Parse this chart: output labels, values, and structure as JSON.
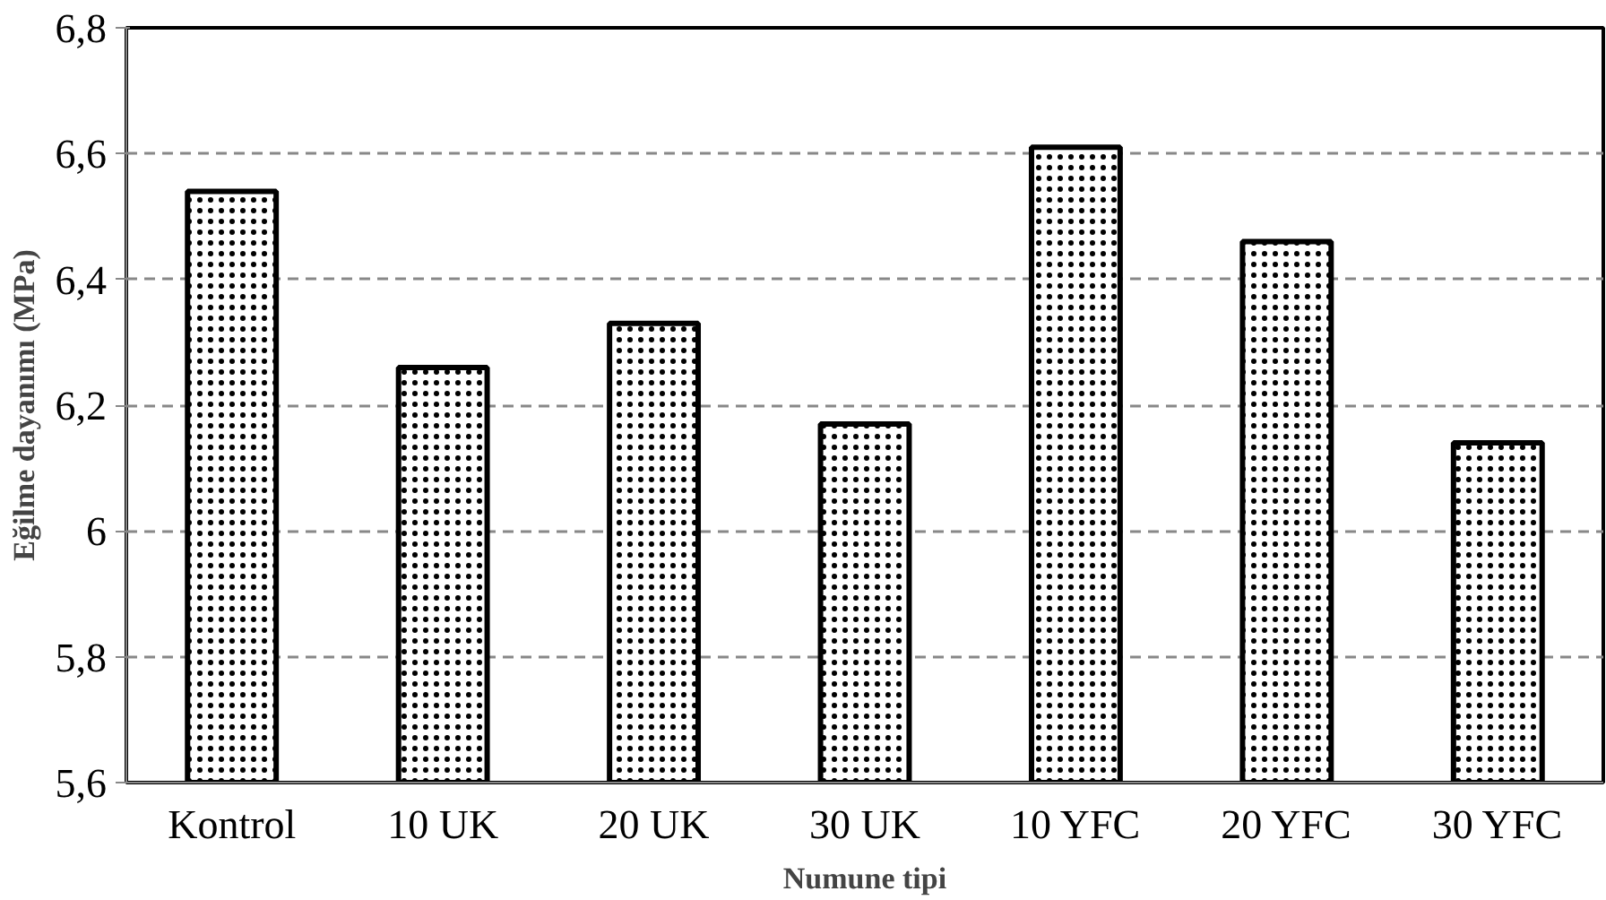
{
  "chart_data": {
    "type": "bar",
    "xlabel": "Numune tipi",
    "ylabel": "Eğilme dayanımı (MPa)",
    "categories": [
      "Kontrol",
      "10 UK",
      "20 UK",
      "30 UK",
      "10 YFC",
      "20 YFC",
      "30 YFC"
    ],
    "values": [
      6.54,
      6.26,
      6.33,
      6.17,
      6.61,
      6.46,
      6.14
    ],
    "color": "#ffffff",
    "ylim": [
      5.6,
      6.8
    ],
    "yticks": [
      {
        "value": 5.6,
        "label": "5,6"
      },
      {
        "value": 5.8,
        "label": "5,8"
      },
      {
        "value": 6.0,
        "label": "6"
      },
      {
        "value": 6.2,
        "label": "6,2"
      },
      {
        "value": 6.4,
        "label": "6,4"
      },
      {
        "value": 6.6,
        "label": "6,6"
      },
      {
        "value": 6.8,
        "label": "6,8"
      }
    ],
    "grid": "y"
  }
}
